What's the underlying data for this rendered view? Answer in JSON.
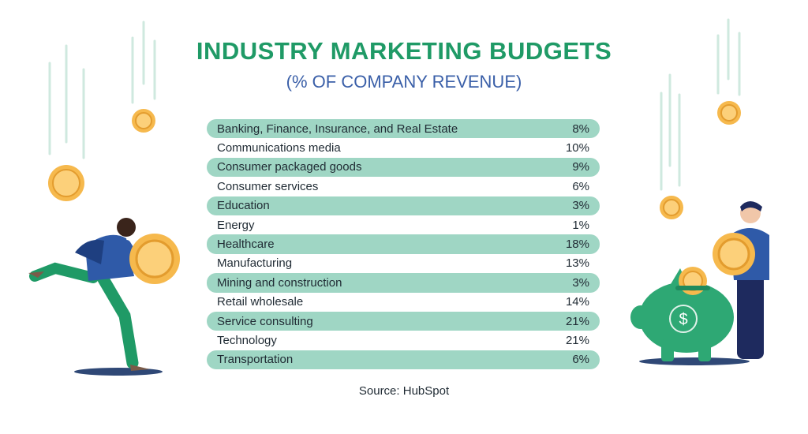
{
  "chart_data": {
    "type": "table",
    "title": "INDUSTRY MARKETING BUDGETS",
    "subtitle": "(% OF COMPANY REVENUE)",
    "rows": [
      {
        "label": "Banking, Finance, Insurance, and Real Estate",
        "value": "8%"
      },
      {
        "label": "Communications media",
        "value": "10%"
      },
      {
        "label": "Consumer packaged goods",
        "value": "9%"
      },
      {
        "label": "Consumer services",
        "value": "6%"
      },
      {
        "label": "Education",
        "value": "3%"
      },
      {
        "label": "Energy",
        "value": "1%"
      },
      {
        "label": "Healthcare",
        "value": "18%"
      },
      {
        "label": "Manufacturing",
        "value": "13%"
      },
      {
        "label": "Mining and construction",
        "value": "3%"
      },
      {
        "label": "Retail wholesale",
        "value": "14%"
      },
      {
        "label": "Service consulting",
        "value": "21%"
      },
      {
        "label": "Technology",
        "value": "21%"
      },
      {
        "label": "Transportation",
        "value": "6%"
      }
    ],
    "source": "Source: HubSpot"
  },
  "colors": {
    "title": "#1f9a66",
    "subtitle": "#3a5fa8",
    "row_band": "#9fd6c4",
    "coin": "#f6b94d",
    "piggy_bank": "#2ea874"
  },
  "illustrations": {
    "left": "running-person-carrying-coin",
    "right": "person-dropping-coin-into-piggy-bank",
    "icons": [
      "falling-coin-icon",
      "piggy-bank-icon",
      "dollar-sign-icon"
    ]
  }
}
